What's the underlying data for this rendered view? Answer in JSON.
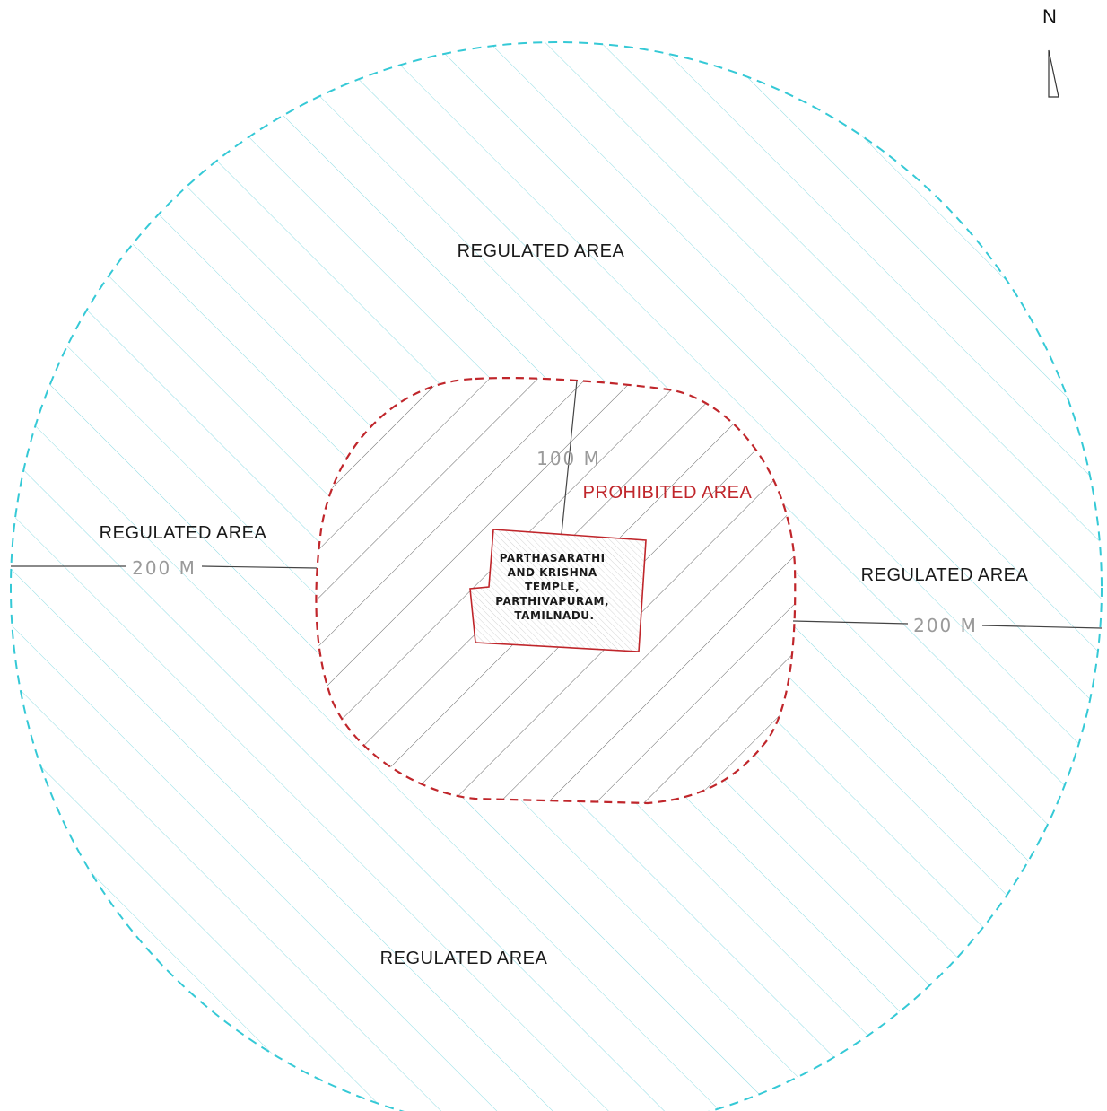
{
  "north": {
    "label": "N",
    "icon": "north-arrow-icon"
  },
  "regulated": {
    "label_top": "REGULATED AREA",
    "label_left": "REGULATED AREA",
    "label_right": "REGULATED AREA",
    "label_bottom": "REGULATED AREA",
    "color": "#35c9d6",
    "boundary_style": "dashed"
  },
  "prohibited": {
    "label": "PROHIBITED AREA",
    "color": "#c0262b",
    "boundary_style": "dashed"
  },
  "dimensions": {
    "prohibited_radius": "100  M",
    "regulated_left": "200  M",
    "regulated_right": "200  M"
  },
  "temple": {
    "lines": [
      "PARTHASARATHI",
      "AND KRISHNA",
      "TEMPLE,",
      "PARTHIVAPURAM,",
      "TAMILNADU."
    ],
    "outline_color": "#c0262b"
  }
}
